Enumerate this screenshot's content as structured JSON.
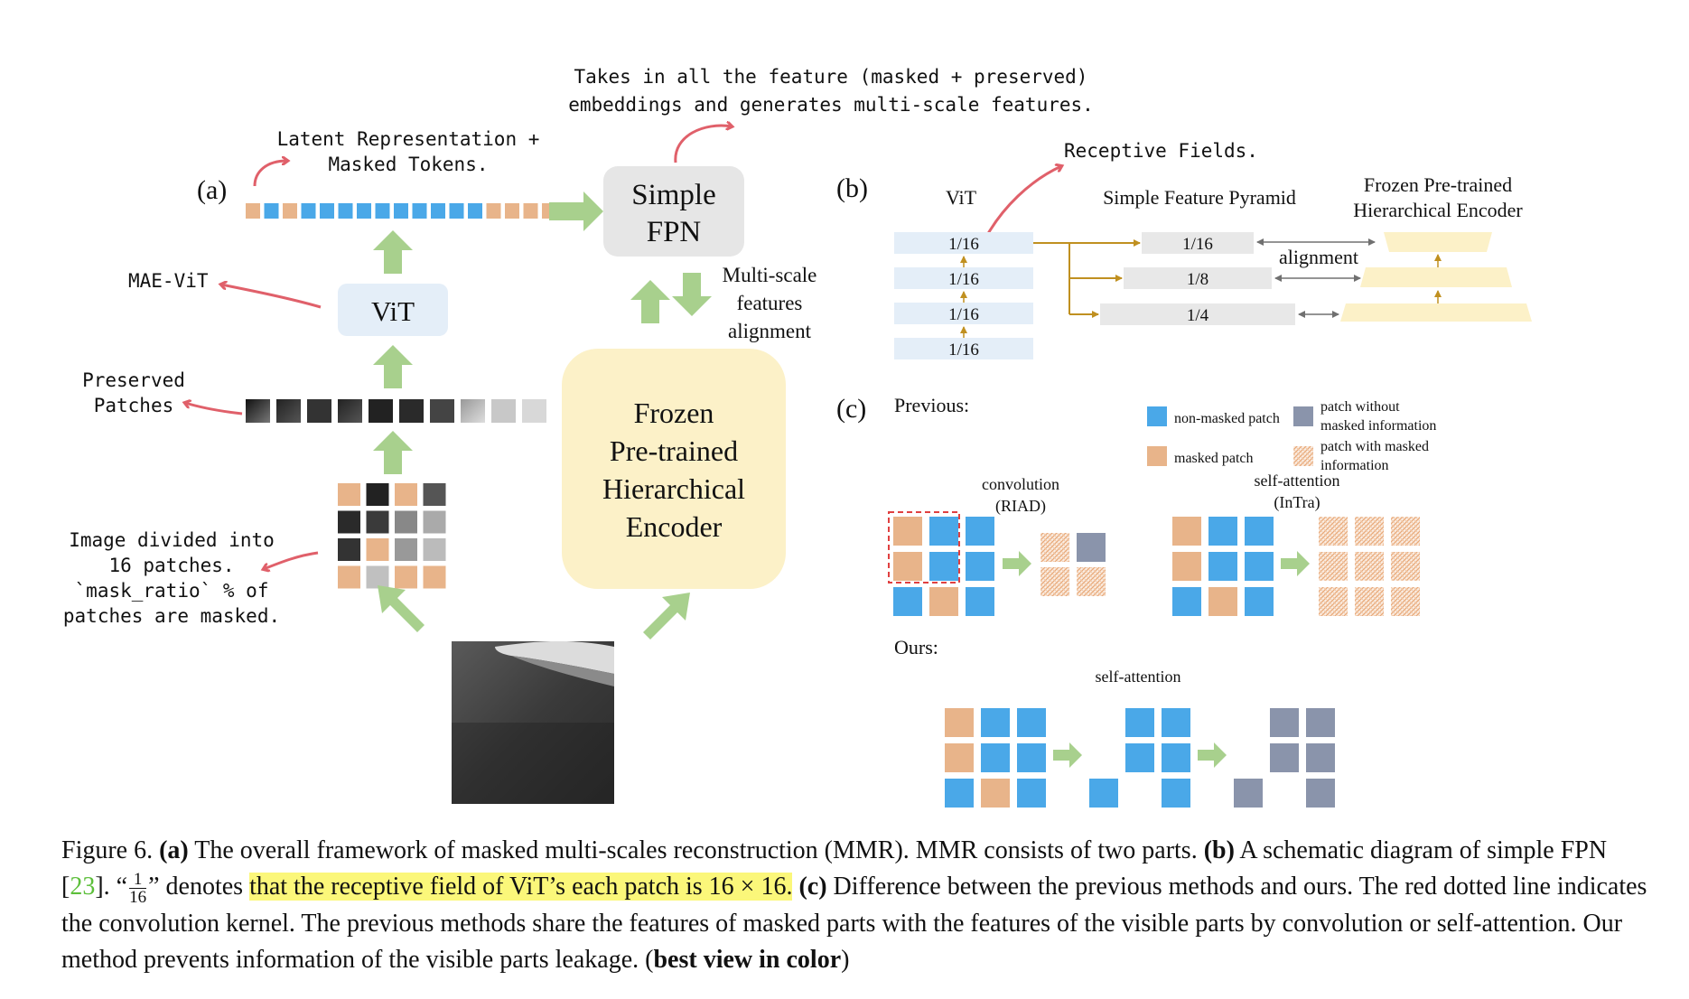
{
  "panel_a": {
    "label": "(a)",
    "notes": {
      "top": [
        "Takes in all the feature (masked + preserved)",
        "embeddings and generates multi-scale features."
      ],
      "latent": [
        "Latent Representation +",
        "Masked Tokens."
      ],
      "mae_vit": "MAE-ViT",
      "preserved": [
        "Preserved",
        "Patches"
      ],
      "image_divided": [
        "Image divided into",
        "16 patches.",
        "`mask_ratio` % of",
        "patches are masked."
      ]
    },
    "vit": "ViT",
    "simple_fpn": [
      "Simple",
      "FPN"
    ],
    "frozen_encoder": [
      "Frozen",
      "Pre-trained",
      "Hierarchical",
      "Encoder"
    ],
    "multi_scale": [
      "Multi-scale",
      "features",
      "alignment"
    ]
  },
  "panel_b": {
    "label": "(b)",
    "receptive_note": "Receptive Fields.",
    "vit_title": "ViT",
    "sfp_title": "Simple Feature Pyramid",
    "frozen_title": [
      "Frozen Pre-trained",
      "Hierarchical Encoder"
    ],
    "vit_rows": [
      "1/16",
      "1/16",
      "1/16",
      "1/16"
    ],
    "pyramid_rows": [
      "1/16",
      "1/8",
      "1/4"
    ],
    "alignment": "alignment"
  },
  "panel_c": {
    "label": "(c)",
    "previous": "Previous:",
    "ours": "Ours:",
    "legend": {
      "non_masked": "non-masked patch",
      "masked": "masked patch",
      "without_masked": [
        "patch without",
        "masked information"
      ],
      "with_masked": [
        "patch with masked",
        "information"
      ]
    },
    "conv_title": [
      "convolution",
      "(RIAD)"
    ],
    "sa_intra_title": [
      "self-attention",
      "(InTra)"
    ],
    "sa_ours_title": "self-attention"
  },
  "colors": {
    "blue": "#4aa8e8",
    "orange": "#e8b48a",
    "gray_patch": "#8a94ab",
    "green_arrow": "#a8d08d",
    "red_arrow": "#e0606a",
    "vit_box": "#e4eef8",
    "fpn_box": "#e6e6e6",
    "encoder_box": "#fcf1c8",
    "gold": "#c09020"
  },
  "caption": {
    "fig": "Figure 6.",
    "a_label": "(a)",
    "a_text": " The overall framework of masked multi-scales reconstruction (MMR). MMR consists of two parts. ",
    "b_label": "(b)",
    "b_text": " A schematic diagram of simple FPN [",
    "ref": "23",
    "after_ref": "]. “",
    "frac_num": "1",
    "frac_den": "16",
    "quote_end": "” denotes ",
    "highlight": "that the receptive field of ViT’s each patch is 16 × 16.",
    "c_label": "(c)",
    "c_text": " Difference between the previous methods and ours. The red dotted line indicates the convolution kernel. The previous methods share the features of masked parts with the features of the visible parts by convolution or self-attention. Our method prevents information of the visible parts leakage. (",
    "bold_end": "best view in color",
    "close": ")"
  }
}
